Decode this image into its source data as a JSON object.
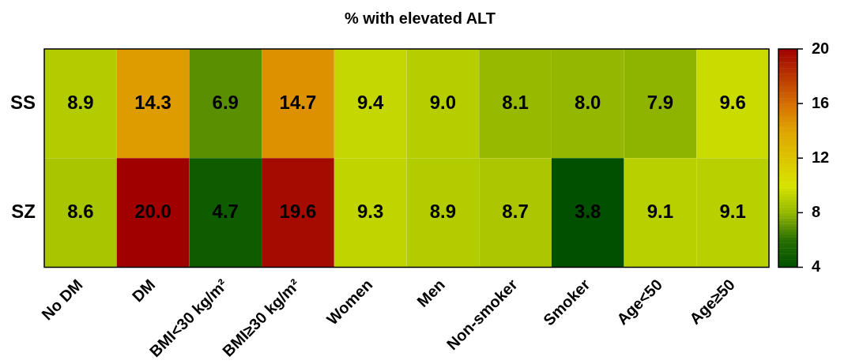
{
  "chart_data": {
    "type": "heatmap",
    "title": "% with elevated ALT",
    "categories": [
      "No DM",
      "DM",
      "BMI<30 kg/m²",
      "BMI≥30 kg/m²",
      "Women",
      "Men",
      "Non-smoker",
      "Smoker",
      "Age<50",
      "Age≥50"
    ],
    "y_categories": [
      "SS",
      "SZ"
    ],
    "cells": [
      [
        8.9,
        14.3,
        6.9,
        14.7,
        9.4,
        9.0,
        8.1,
        8.0,
        7.9,
        9.6
      ],
      [
        8.6,
        20.0,
        4.7,
        19.6,
        9.3,
        8.9,
        8.7,
        3.8,
        9.1,
        9.1
      ]
    ],
    "cell_labels": [
      [
        "8.9",
        "14.3",
        "6.9",
        "14.7",
        "9.4",
        "9.0",
        "8.1",
        "8.0",
        "7.9",
        "9.6"
      ],
      [
        "8.6",
        "20.0",
        "4.7",
        "19.6",
        "9.3",
        "8.9",
        "8.7",
        "3.8",
        "9.1",
        "9.1"
      ]
    ],
    "clim": [
      4,
      20
    ],
    "cticks": [
      4,
      8,
      12,
      16,
      20
    ]
  }
}
